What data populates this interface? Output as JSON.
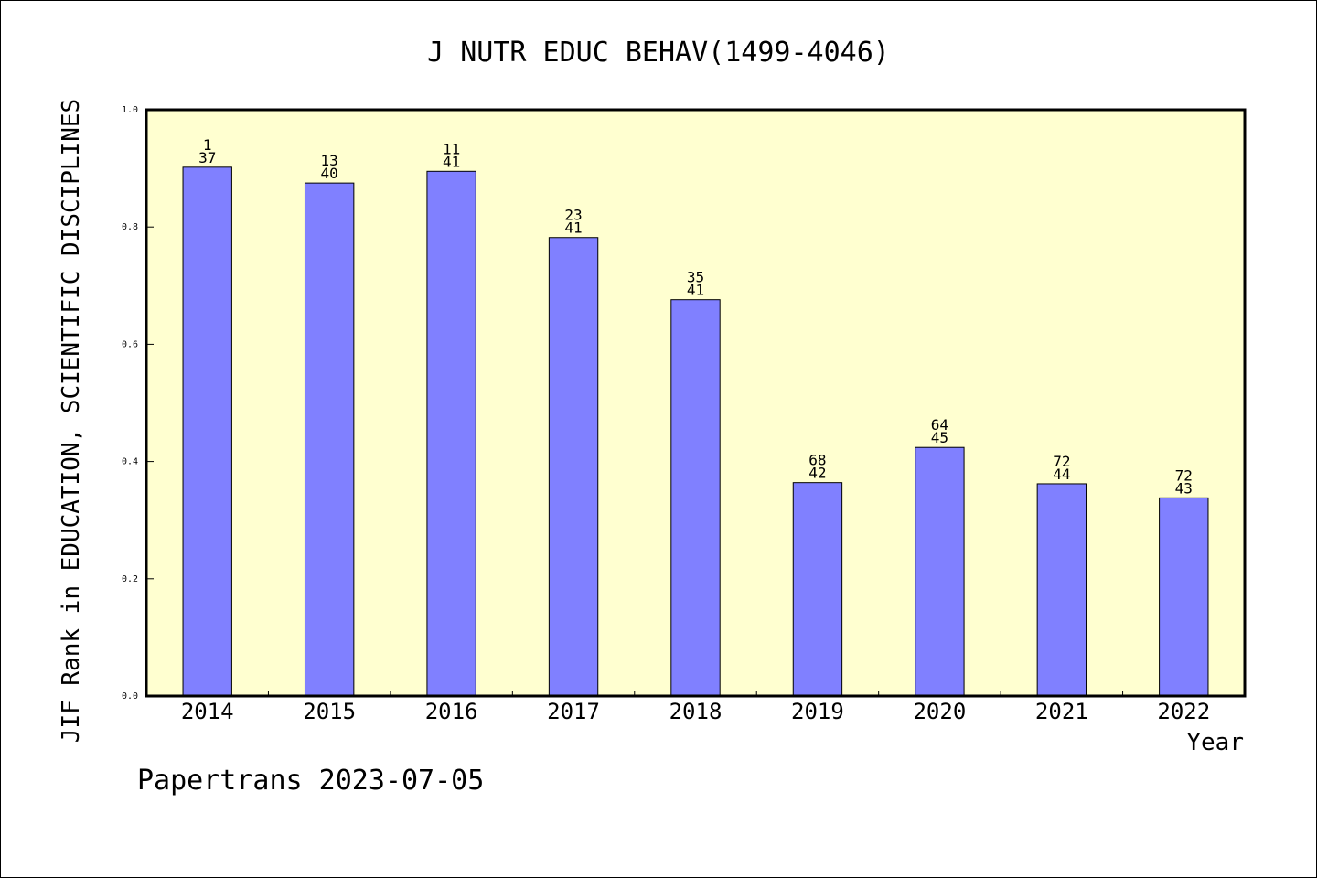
{
  "colors": {
    "plot_background": "#ffffd0",
    "bar_fill": "#8080ff",
    "axis": "#000000"
  },
  "footer": "Papertrans 2023-07-05",
  "chart_data": {
    "type": "bar",
    "title": "J NUTR EDUC BEHAV(1499-4046)",
    "xlabel": "Year",
    "ylabel": "JIF Rank in EDUCATION, SCIENTIFIC DISCIPLINES",
    "ylim": [
      0,
      1.0
    ],
    "yticks": [
      "0.0",
      "0.2",
      "0.4",
      "0.6",
      "0.8",
      "1.0"
    ],
    "grid": false,
    "categories": [
      "2014",
      "2015",
      "2016",
      "2017",
      "2018",
      "2019",
      "2020",
      "2021",
      "2022"
    ],
    "values": [
      0.902,
      0.875,
      0.895,
      0.782,
      0.676,
      0.364,
      0.424,
      0.362,
      0.338
    ],
    "rank_labels": [
      [
        "1",
        "37"
      ],
      [
        "13",
        "40"
      ],
      [
        "11",
        "41"
      ],
      [
        "23",
        "41"
      ],
      [
        "35",
        "41"
      ],
      [
        "68",
        "42"
      ],
      [
        "64",
        "45"
      ],
      [
        "72",
        "44"
      ],
      [
        "72",
        "43"
      ]
    ]
  }
}
